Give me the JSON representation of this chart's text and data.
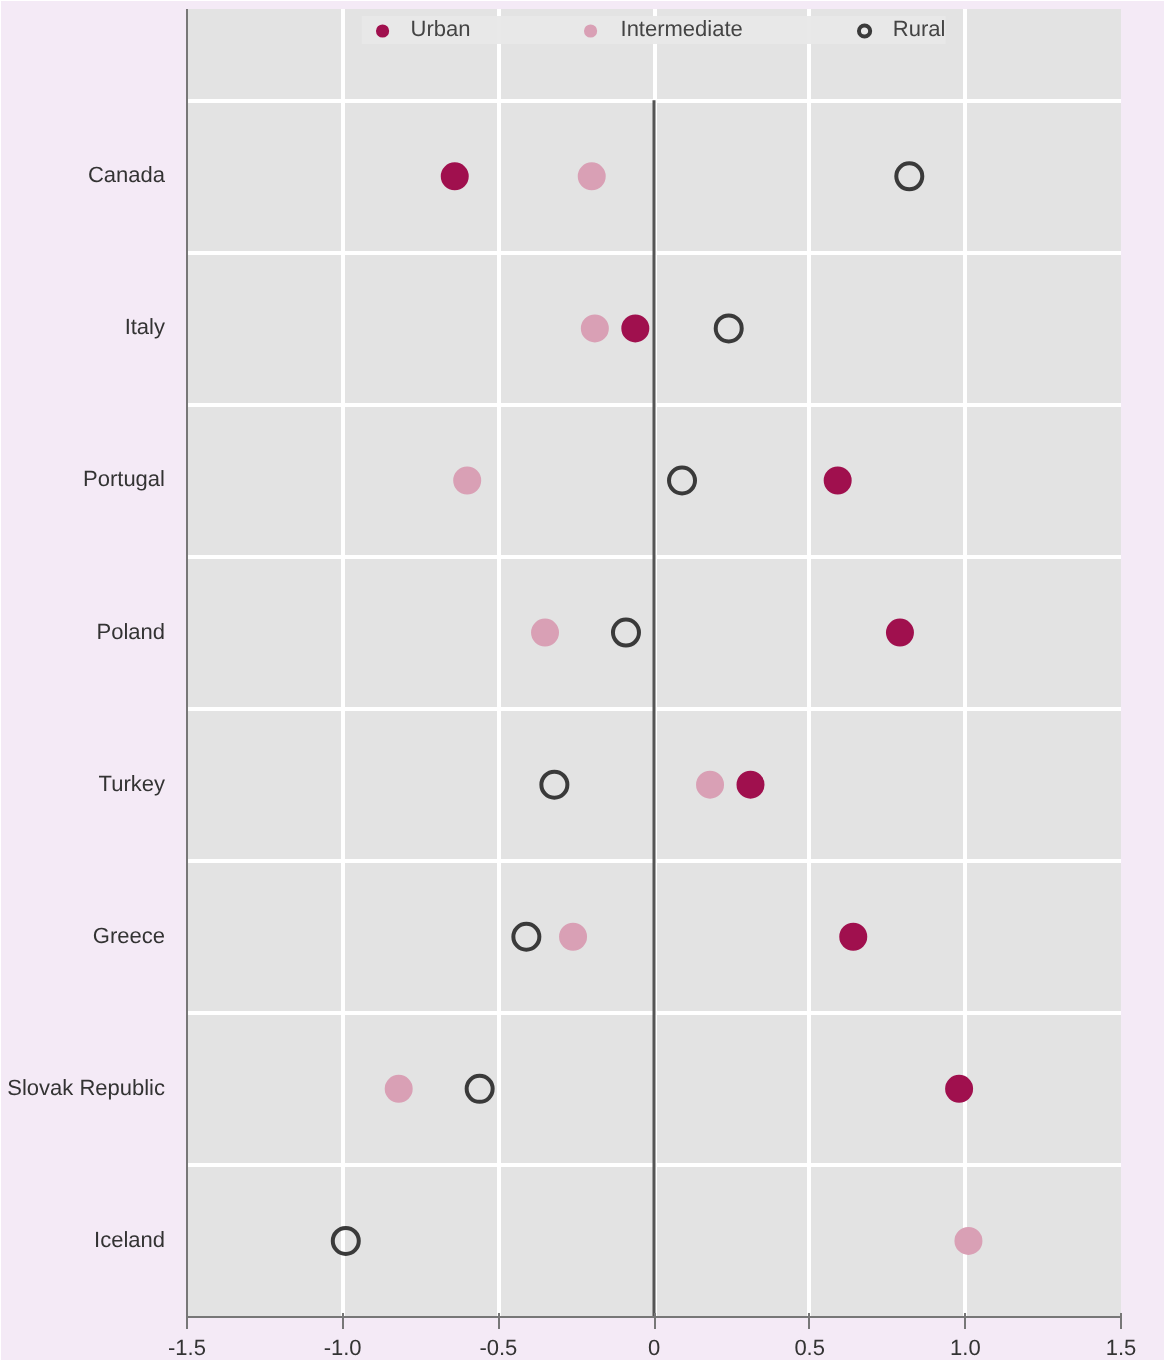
{
  "chart_data": {
    "type": "scatter",
    "orientation": "horizontal",
    "categories": [
      "Canada",
      "Italy",
      "Portugal",
      "Poland",
      "Turkey",
      "Greece",
      "Slovak Republic",
      "Iceland"
    ],
    "series": [
      {
        "name": "Urban",
        "color": "#a0104e",
        "values": [
          -0.64,
          -0.06,
          0.59,
          0.79,
          0.31,
          0.64,
          0.98,
          null
        ]
      },
      {
        "name": "Intermediate",
        "color": "#d9a0b5",
        "values": [
          -0.2,
          -0.19,
          -0.6,
          -0.35,
          0.18,
          -0.26,
          -0.82,
          1.01
        ]
      },
      {
        "name": "Rural",
        "color": "#3a3a3a",
        "marker": "circle_open",
        "values": [
          0.82,
          0.24,
          0.09,
          -0.09,
          -0.32,
          -0.41,
          -0.56,
          -0.99
        ]
      }
    ],
    "xlim": [
      -1.5,
      1.5
    ],
    "xticks": [
      "-1.5",
      "-1.0",
      "-0.5",
      0,
      0.5,
      "1.0",
      1.5
    ],
    "ref_lines": [
      {
        "axis": "x",
        "value": 0,
        "color": "#555555"
      }
    ],
    "grid": true,
    "legend": "top",
    "marker": "circle"
  }
}
